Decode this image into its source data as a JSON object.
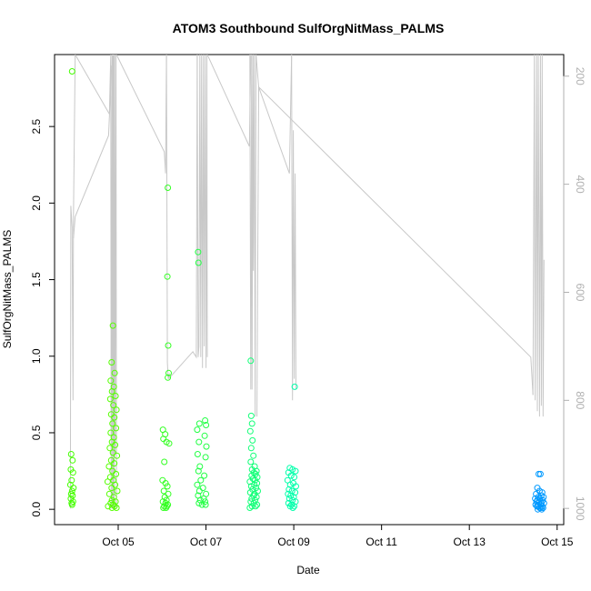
{
  "chart_data": {
    "type": "scatter",
    "title": "ATOM3 Southbound SulfOrgNitMass_PALMS",
    "xlabel": "Date",
    "ylabel": "SulfOrgNitMass_PALMS",
    "x_unit": "day of October",
    "xlim": [
      3.55,
      15.15
    ],
    "ylim": [
      -0.1,
      2.97
    ],
    "x_ticks": [
      5,
      7,
      9,
      11,
      13,
      15
    ],
    "x_tick_labels": [
      "Oct 05",
      "Oct 07",
      "Oct 09",
      "Oct 11",
      "Oct 13",
      "Oct 15"
    ],
    "y_ticks": [
      0.0,
      0.5,
      1.0,
      1.5,
      2.0,
      2.5
    ],
    "y_tick_labels": [
      "0.0",
      "0.5",
      "1.0",
      "1.5",
      "2.0",
      "2.5"
    ],
    "right_axis": {
      "description": "pressure (inverted)",
      "ylim": [
        1030,
        160
      ],
      "ticks": [
        200,
        400,
        600,
        800,
        1000
      ],
      "tick_labels": [
        "200",
        "400",
        "600",
        "800",
        "1000"
      ],
      "color": "#b0b0b0"
    },
    "grid": false,
    "legend": "none",
    "series": [
      {
        "color": "#44ff00",
        "points": [
          [
            3.95,
            2.86
          ],
          [
            3.93,
            0.36
          ],
          [
            3.96,
            0.32
          ],
          [
            3.92,
            0.26
          ],
          [
            3.97,
            0.24
          ],
          [
            3.94,
            0.19
          ],
          [
            3.91,
            0.16
          ],
          [
            3.98,
            0.14
          ],
          [
            3.95,
            0.12
          ],
          [
            3.93,
            0.1
          ],
          [
            3.96,
            0.09
          ],
          [
            3.92,
            0.07
          ],
          [
            3.97,
            0.05
          ],
          [
            3.94,
            0.04
          ],
          [
            3.95,
            0.03
          ]
        ]
      },
      {
        "color": "#55ff00",
        "points": [
          [
            4.88,
            1.2
          ],
          [
            4.85,
            0.96
          ],
          [
            4.92,
            0.89
          ],
          [
            4.83,
            0.84
          ],
          [
            4.9,
            0.8
          ],
          [
            4.86,
            0.77
          ],
          [
            4.94,
            0.74
          ],
          [
            4.82,
            0.72
          ],
          [
            4.89,
            0.68
          ],
          [
            4.96,
            0.65
          ],
          [
            4.84,
            0.62
          ],
          [
            4.91,
            0.6
          ],
          [
            4.87,
            0.56
          ],
          [
            4.95,
            0.53
          ],
          [
            4.83,
            0.5
          ],
          [
            4.9,
            0.47
          ],
          [
            4.86,
            0.44
          ],
          [
            4.93,
            0.42
          ],
          [
            4.81,
            0.4
          ],
          [
            4.88,
            0.37
          ],
          [
            4.97,
            0.35
          ],
          [
            4.84,
            0.32
          ],
          [
            4.91,
            0.3
          ],
          [
            4.79,
            0.28
          ],
          [
            4.87,
            0.25
          ],
          [
            4.95,
            0.23
          ],
          [
            4.82,
            0.21
          ],
          [
            4.89,
            0.19
          ],
          [
            4.76,
            0.18
          ],
          [
            4.93,
            0.16
          ],
          [
            4.85,
            0.14
          ],
          [
            4.98,
            0.12
          ],
          [
            4.8,
            0.1
          ],
          [
            4.9,
            0.08
          ],
          [
            4.86,
            0.06
          ],
          [
            4.94,
            0.05
          ],
          [
            4.83,
            0.04
          ],
          [
            4.89,
            0.03
          ],
          [
            4.77,
            0.02
          ],
          [
            4.92,
            0.02
          ],
          [
            4.86,
            0.01
          ],
          [
            4.96,
            0.01
          ]
        ]
      },
      {
        "color": "#33ff22",
        "points": [
          [
            6.13,
            2.1
          ],
          [
            6.12,
            1.52
          ],
          [
            6.14,
            1.07
          ],
          [
            6.15,
            0.89
          ],
          [
            6.13,
            0.86
          ],
          [
            6.02,
            0.52
          ],
          [
            6.07,
            0.49
          ],
          [
            6.03,
            0.46
          ],
          [
            6.1,
            0.44
          ],
          [
            6.16,
            0.43
          ],
          [
            6.05,
            0.31
          ],
          [
            6.01,
            0.19
          ],
          [
            6.08,
            0.17
          ],
          [
            6.12,
            0.15
          ],
          [
            6.04,
            0.12
          ],
          [
            6.14,
            0.1
          ],
          [
            6.06,
            0.08
          ],
          [
            6.1,
            0.06
          ],
          [
            6.02,
            0.05
          ],
          [
            6.08,
            0.04
          ],
          [
            6.13,
            0.03
          ],
          [
            6.05,
            0.02
          ],
          [
            6.11,
            0.02
          ],
          [
            6.03,
            0.01
          ],
          [
            6.09,
            0.01
          ]
        ]
      },
      {
        "color": "#22ff44",
        "points": [
          [
            6.82,
            1.68
          ],
          [
            6.83,
            1.61
          ],
          [
            6.85,
            0.56
          ],
          [
            6.98,
            0.58
          ],
          [
            7.0,
            0.55
          ],
          [
            6.8,
            0.52
          ],
          [
            6.97,
            0.48
          ],
          [
            6.84,
            0.44
          ],
          [
            7.01,
            0.41
          ],
          [
            6.81,
            0.36
          ],
          [
            6.99,
            0.34
          ],
          [
            6.86,
            0.28
          ],
          [
            6.83,
            0.25
          ],
          [
            6.96,
            0.22
          ],
          [
            6.88,
            0.19
          ],
          [
            6.8,
            0.16
          ],
          [
            6.93,
            0.14
          ],
          [
            6.85,
            0.12
          ],
          [
            7.0,
            0.1
          ],
          [
            6.82,
            0.09
          ],
          [
            6.95,
            0.07
          ],
          [
            6.87,
            0.06
          ],
          [
            6.98,
            0.05
          ],
          [
            6.84,
            0.04
          ],
          [
            6.91,
            0.03
          ],
          [
            6.99,
            0.03
          ]
        ]
      },
      {
        "color": "#11ff77",
        "points": [
          [
            8.02,
            0.97
          ],
          [
            8.03,
            0.61
          ],
          [
            8.05,
            0.56
          ],
          [
            8.01,
            0.51
          ],
          [
            8.06,
            0.45
          ],
          [
            8.03,
            0.4
          ],
          [
            8.08,
            0.35
          ],
          [
            8.02,
            0.31
          ],
          [
            8.11,
            0.28
          ],
          [
            8.05,
            0.26
          ],
          [
            8.15,
            0.25
          ],
          [
            8.09,
            0.24
          ],
          [
            8.13,
            0.23
          ],
          [
            8.04,
            0.22
          ],
          [
            8.17,
            0.21
          ],
          [
            8.07,
            0.2
          ],
          [
            8.12,
            0.19
          ],
          [
            8.0,
            0.18
          ],
          [
            8.16,
            0.17
          ],
          [
            8.1,
            0.16
          ],
          [
            8.03,
            0.15
          ],
          [
            8.14,
            0.14
          ],
          [
            8.06,
            0.13
          ],
          [
            8.18,
            0.12
          ],
          [
            8.01,
            0.11
          ],
          [
            8.11,
            0.1
          ],
          [
            8.08,
            0.09
          ],
          [
            8.15,
            0.08
          ],
          [
            8.04,
            0.07
          ],
          [
            8.12,
            0.06
          ],
          [
            8.02,
            0.05
          ],
          [
            8.09,
            0.04
          ],
          [
            8.16,
            0.03
          ],
          [
            8.05,
            0.02
          ],
          [
            8.13,
            0.02
          ],
          [
            8.0,
            0.01
          ]
        ]
      },
      {
        "color": "#00ffaa",
        "points": [
          [
            9.02,
            0.8
          ],
          [
            8.91,
            0.27
          ],
          [
            8.97,
            0.26
          ],
          [
            9.04,
            0.25
          ],
          [
            8.88,
            0.24
          ],
          [
            8.94,
            0.22
          ],
          [
            9.01,
            0.21
          ],
          [
            8.86,
            0.19
          ],
          [
            8.99,
            0.17
          ],
          [
            8.92,
            0.16
          ],
          [
            9.05,
            0.15
          ],
          [
            8.89,
            0.13
          ],
          [
            8.96,
            0.12
          ],
          [
            9.03,
            0.11
          ],
          [
            8.87,
            0.1
          ],
          [
            8.93,
            0.09
          ],
          [
            9.0,
            0.08
          ],
          [
            8.9,
            0.07
          ],
          [
            8.97,
            0.06
          ],
          [
            9.04,
            0.05
          ],
          [
            8.88,
            0.04
          ],
          [
            8.95,
            0.03
          ],
          [
            9.01,
            0.02
          ],
          [
            8.92,
            0.02
          ],
          [
            8.98,
            0.01
          ]
        ]
      },
      {
        "color": "#0099ff",
        "points": [
          [
            14.58,
            0.23
          ],
          [
            14.62,
            0.23
          ],
          [
            14.55,
            0.14
          ],
          [
            14.6,
            0.12
          ],
          [
            14.66,
            0.11
          ],
          [
            14.52,
            0.1
          ],
          [
            14.64,
            0.09
          ],
          [
            14.57,
            0.08
          ],
          [
            14.69,
            0.08
          ],
          [
            14.5,
            0.07
          ],
          [
            14.61,
            0.07
          ],
          [
            14.55,
            0.06
          ],
          [
            14.67,
            0.06
          ],
          [
            14.59,
            0.05
          ],
          [
            14.53,
            0.05
          ],
          [
            14.64,
            0.04
          ],
          [
            14.7,
            0.04
          ],
          [
            14.56,
            0.03
          ],
          [
            14.62,
            0.03
          ],
          [
            14.51,
            0.03
          ],
          [
            14.66,
            0.02
          ],
          [
            14.58,
            0.02
          ],
          [
            14.54,
            0.02
          ],
          [
            14.68,
            0.01
          ],
          [
            14.6,
            0.01
          ],
          [
            14.63,
            0.01
          ],
          [
            14.56,
            0.0
          ],
          [
            14.65,
            0.0
          ]
        ]
      }
    ],
    "pressure_trace": {
      "color": "#c8c8c8",
      "segments": [
        [
          [
            3.91,
            1000
          ],
          [
            3.92,
            440
          ],
          [
            3.95,
            480
          ],
          [
            3.97,
            800
          ],
          [
            3.98,
            460
          ],
          [
            4.02,
            160
          ]
        ],
        [
          [
            3.98,
            500
          ],
          [
            4.02,
            460
          ],
          [
            4.78,
            310
          ],
          [
            4.85,
            180
          ]
        ],
        [
          [
            4.02,
            160
          ],
          [
            4.8,
            270
          ]
        ],
        [
          [
            4.8,
            270
          ],
          [
            4.83,
            160
          ],
          [
            4.84,
            1000
          ],
          [
            4.86,
            160
          ],
          [
            4.87,
            1000
          ],
          [
            4.88,
            160
          ],
          [
            4.89,
            1000
          ],
          [
            4.9,
            160
          ],
          [
            4.91,
            1000
          ],
          [
            4.92,
            160
          ],
          [
            4.93,
            900
          ],
          [
            4.95,
            160
          ],
          [
            4.96,
            1000
          ]
        ],
        [
          [
            4.96,
            160
          ],
          [
            6.05,
            340
          ],
          [
            6.08,
            380
          ],
          [
            6.1,
            160
          ]
        ],
        [
          [
            6.1,
            160
          ],
          [
            6.12,
            730
          ],
          [
            6.14,
            760
          ],
          [
            6.17,
            750
          ]
        ],
        [
          [
            6.15,
            760
          ],
          [
            6.7,
            710
          ],
          [
            6.78,
            720
          ],
          [
            6.8,
            160
          ]
        ],
        [
          [
            6.8,
            160
          ],
          [
            6.82,
            720
          ],
          [
            6.84,
            700
          ],
          [
            6.86,
            160
          ],
          [
            6.88,
            720
          ],
          [
            6.9,
            160
          ],
          [
            6.92,
            740
          ],
          [
            6.94,
            160
          ],
          [
            6.96,
            700
          ],
          [
            6.98,
            160
          ],
          [
            7.0,
            740
          ],
          [
            7.02,
            160
          ],
          [
            7.03,
            720
          ]
        ],
        [
          [
            7.03,
            160
          ],
          [
            7.99,
            330
          ],
          [
            8.02,
            160
          ]
        ],
        [
          [
            8.0,
            160
          ],
          [
            8.02,
            780
          ],
          [
            8.04,
            160
          ],
          [
            8.05,
            780
          ],
          [
            8.07,
            160
          ],
          [
            8.08,
            560
          ],
          [
            8.1,
            160
          ],
          [
            8.12,
            830
          ],
          [
            8.14,
            160
          ]
        ],
        [
          [
            8.14,
            160
          ],
          [
            8.2,
            220
          ],
          [
            8.9,
            380
          ],
          [
            8.95,
            160
          ]
        ],
        [
          [
            8.95,
            160
          ],
          [
            8.97,
            800
          ],
          [
            8.99,
            300
          ],
          [
            9.01,
            760
          ],
          [
            9.03,
            380
          ],
          [
            9.05,
            780
          ]
        ],
        [
          [
            8.16,
            830
          ],
          [
            8.2,
            220
          ],
          [
            14.4,
            720
          ],
          [
            14.45,
            790
          ]
        ],
        [
          [
            14.45,
            790
          ],
          [
            14.48,
            160
          ],
          [
            14.5,
            800
          ],
          [
            14.53,
            160
          ],
          [
            14.55,
            820
          ],
          [
            14.57,
            160
          ],
          [
            14.6,
            830
          ],
          [
            14.62,
            160
          ],
          [
            14.64,
            810
          ],
          [
            14.66,
            160
          ],
          [
            14.68,
            830
          ],
          [
            14.7,
            540
          ]
        ]
      ]
    }
  }
}
